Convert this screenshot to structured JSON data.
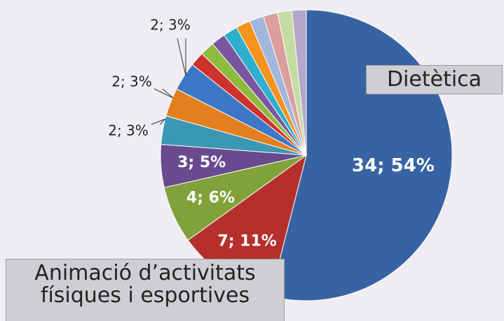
{
  "chart_data": {
    "type": "pie",
    "categories": [
      null,
      null,
      null,
      null,
      null,
      null,
      null,
      null,
      null,
      null,
      null,
      null,
      null,
      null,
      null,
      null
    ],
    "values": [
      34,
      7,
      4,
      3,
      2,
      2,
      2,
      1,
      1,
      1,
      1,
      1,
      1,
      1,
      1,
      1
    ],
    "value_labels": [
      "34; 54%",
      "7; 11%",
      "4; 6%",
      "3; 5%",
      "2; 3%",
      "2; 3%",
      "2; 3%",
      null,
      null,
      null,
      null,
      null,
      null,
      null,
      null,
      null
    ],
    "colors": [
      "#3763a2",
      "#b5302c",
      "#7fa23a",
      "#6a4a8e",
      "#3a98b3",
      "#e47f1f",
      "#3d78c6",
      "#cf312b",
      "#8dbb3d",
      "#7a55a0",
      "#2eafce",
      "#f6921e",
      "#a0b6dc",
      "#dc9d9d",
      "#c5dca2",
      "#b4a7cb"
    ],
    "annotations": [
      "Dietètica",
      "Animació d’activitats físiques i esportives"
    ]
  }
}
